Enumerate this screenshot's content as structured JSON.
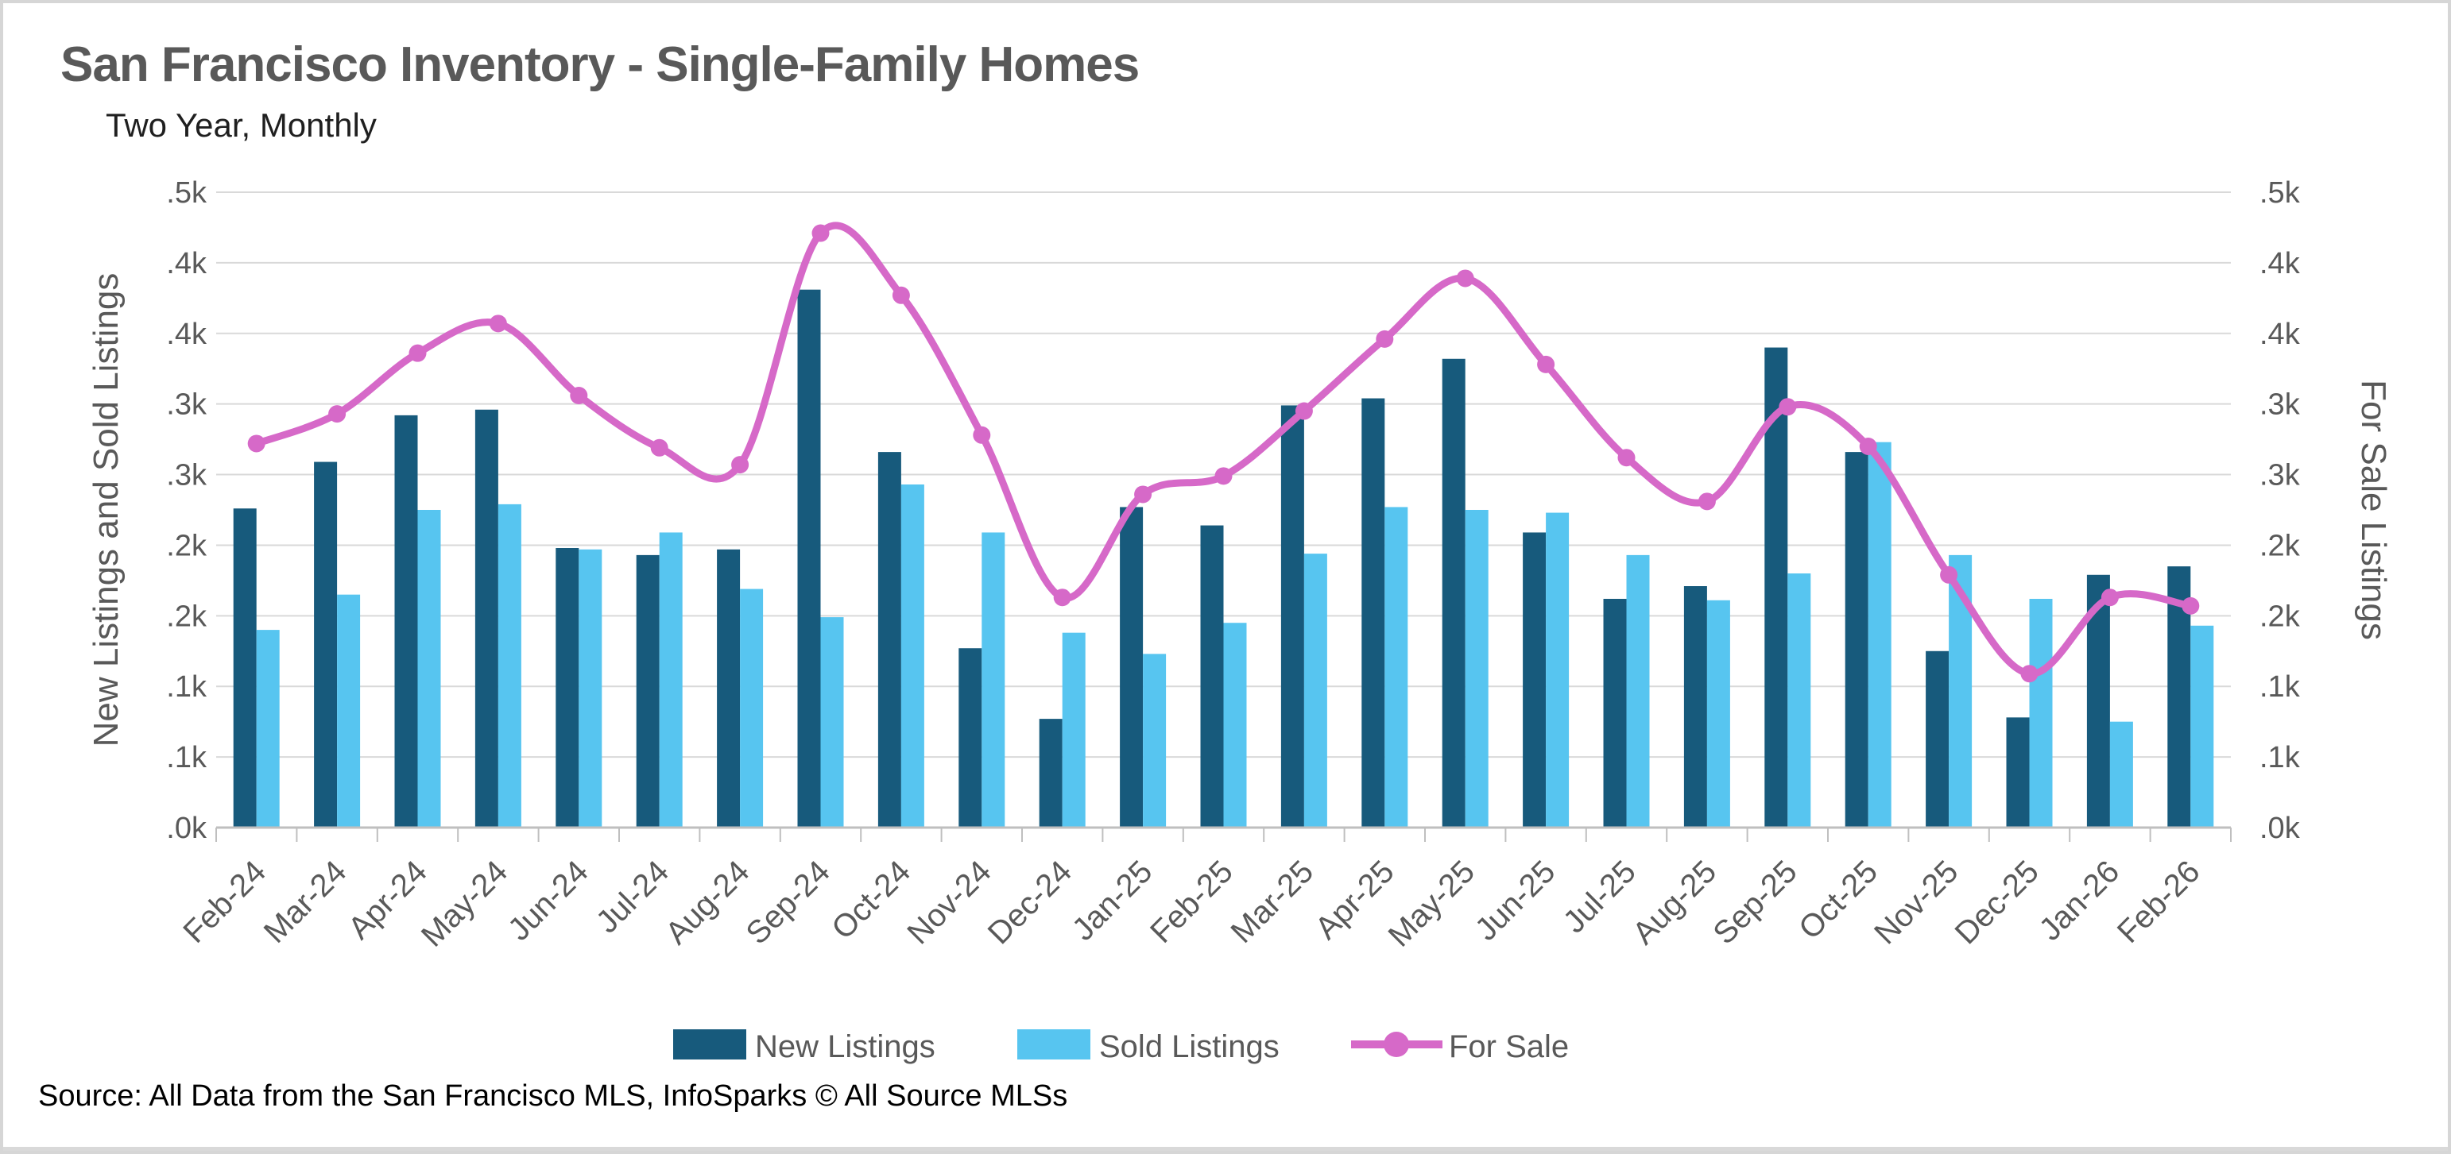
{
  "header": {
    "title": "San Francisco Inventory - Single-Family Homes",
    "subtitle": "Two Year, Monthly"
  },
  "source": "Source: All Data from the San Francisco MLS, InfoSparks © All Source MLSs",
  "axes": {
    "left_title": "New Listings and Sold Listings",
    "right_title": "For Sale Listings",
    "tick_labels_bottom_to_top": [
      ".0k",
      ".1k",
      ".1k",
      ".2k",
      ".2k",
      ".3k",
      ".3k",
      ".4k",
      ".4k",
      ".5k"
    ],
    "y_min": 0,
    "y_max": 450,
    "y_step": 50
  },
  "legend": {
    "items": [
      "New Listings",
      "Sold Listings",
      "For Sale"
    ],
    "position": "bottom"
  },
  "colors": {
    "new_listings": "#175A7C",
    "sold_listings": "#57C5F0",
    "for_sale": "#D669C8",
    "gridline": "#D9D9D9",
    "axis_line": "#BFBFBF",
    "text_gray": "#595959"
  },
  "chart_data": {
    "type": "bar",
    "subtype": "combo-bar-line",
    "title": "San Francisco Inventory - Single-Family Homes",
    "subtitle": "Two Year, Monthly",
    "xlabel": "",
    "ylabel_left": "New Listings and Sold Listings",
    "ylabel_right": "For Sale Listings",
    "ylim": [
      0,
      450
    ],
    "y_tick_step": 50,
    "grid": true,
    "legend_position": "bottom",
    "x_tick_rotation": 45,
    "categories": [
      "Feb-24",
      "Mar-24",
      "Apr-24",
      "May-24",
      "Jun-24",
      "Jul-24",
      "Aug-24",
      "Sep-24",
      "Oct-24",
      "Nov-24",
      "Dec-24",
      "Jan-25",
      "Feb-25",
      "Mar-25",
      "Apr-25",
      "May-25",
      "Jun-25",
      "Jul-25",
      "Aug-25",
      "Sep-25",
      "Oct-25",
      "Nov-25",
      "Dec-25",
      "Jan-26",
      "Feb-26"
    ],
    "series": [
      {
        "name": "New Listings",
        "kind": "bar",
        "color": "#175A7C",
        "values": [
          226,
          259,
          292,
          296,
          198,
          193,
          197,
          381,
          266,
          127,
          77,
          227,
          214,
          299,
          304,
          332,
          209,
          162,
          171,
          340,
          266,
          125,
          78,
          179,
          185
        ]
      },
      {
        "name": "Sold Listings",
        "kind": "bar",
        "color": "#57C5F0",
        "values": [
          140,
          165,
          225,
          229,
          197,
          209,
          169,
          149,
          243,
          209,
          138,
          123,
          145,
          194,
          227,
          225,
          223,
          193,
          161,
          180,
          273,
          193,
          162,
          75,
          143
        ]
      },
      {
        "name": "For Sale",
        "kind": "line",
        "color": "#D669C8",
        "smoothed": true,
        "values": [
          272,
          293,
          336,
          357,
          306,
          269,
          257,
          421,
          377,
          278,
          163,
          236,
          249,
          295,
          346,
          389,
          328,
          262,
          231,
          298,
          270,
          179,
          109,
          163,
          157
        ]
      }
    ]
  }
}
